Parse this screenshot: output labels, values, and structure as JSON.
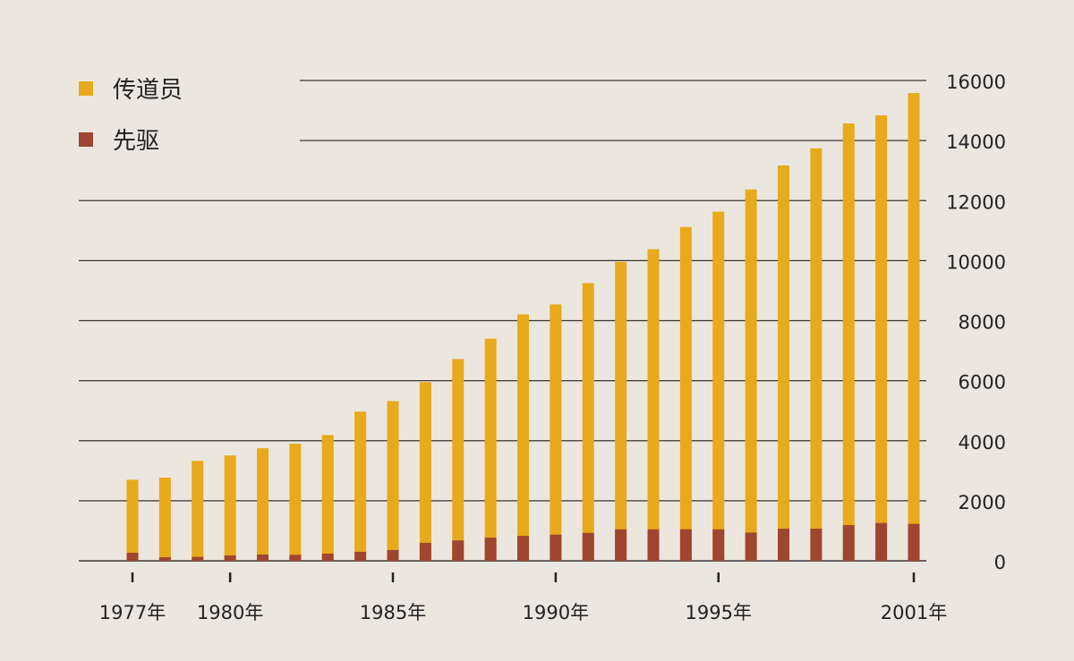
{
  "chart_data": {
    "type": "bar",
    "stacked": false,
    "overlay": true,
    "categories": [
      "1977",
      "1978",
      "1979",
      "1980",
      "1981",
      "1982",
      "1983",
      "1984",
      "1985",
      "1986",
      "1987",
      "1988",
      "1989",
      "1990",
      "1991",
      "1992",
      "1993",
      "1994",
      "1995",
      "1996",
      "1997",
      "1998",
      "1999",
      "2000",
      "2001"
    ],
    "x_tick_labels": [
      {
        "category": "1977",
        "label": "1977年"
      },
      {
        "category": "1980",
        "label": "1980年"
      },
      {
        "category": "1985",
        "label": "1985年"
      },
      {
        "category": "1990",
        "label": "1990年"
      },
      {
        "category": "1995",
        "label": "1995年"
      },
      {
        "category": "2001",
        "label": "2001年"
      }
    ],
    "series": [
      {
        "name": "传道员",
        "color": "#e8a91c",
        "values": [
          2700,
          2770,
          3330,
          3510,
          3750,
          3900,
          4190,
          4970,
          5320,
          5950,
          6720,
          7400,
          8210,
          8540,
          9250,
          9960,
          10380,
          11120,
          11630,
          12370,
          13170,
          13740,
          14570,
          14840,
          15580
        ]
      },
      {
        "name": "先驱",
        "color": "#a0452f",
        "values": [
          270,
          120,
          130,
          180,
          210,
          200,
          240,
          300,
          360,
          600,
          680,
          770,
          830,
          870,
          930,
          1050,
          1050,
          1050,
          1050,
          940,
          1070,
          1070,
          1190,
          1260,
          1230
        ]
      }
    ],
    "y_ticks": [
      "0",
      "2000",
      "4000",
      "6000",
      "8000",
      "10000",
      "12000",
      "14000",
      "16000"
    ],
    "ylim": [
      0,
      16000
    ],
    "y_axis_side": "right",
    "grid": true,
    "legend_position": "top-left",
    "title": "",
    "xlabel": "",
    "ylabel": ""
  }
}
